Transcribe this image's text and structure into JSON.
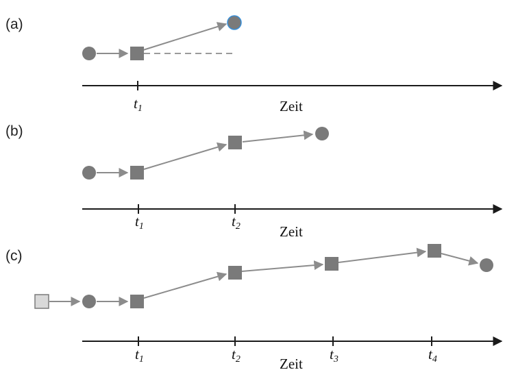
{
  "panels": [
    {
      "label": "(a)",
      "axis_label": "Zeit",
      "ticks": [
        {
          "base": "t",
          "sub": "1"
        }
      ]
    },
    {
      "label": "(b)",
      "axis_label": "Zeit",
      "ticks": [
        {
          "base": "t",
          "sub": "1"
        },
        {
          "base": "t",
          "sub": "2"
        }
      ]
    },
    {
      "label": "(c)",
      "axis_label": "Zeit",
      "ticks": [
        {
          "base": "t",
          "sub": "1"
        },
        {
          "base": "t",
          "sub": "2"
        },
        {
          "base": "t",
          "sub": "3"
        },
        {
          "base": "t",
          "sub": "4"
        }
      ]
    }
  ],
  "colors": {
    "node_fill": "#7a7a7a",
    "node_fill_light": "#d9d9d9",
    "node_stroke_highlight": "#3a8fd6",
    "edge": "#8c8c8c",
    "dashed": "#9a9a9a",
    "axis": "#1a1a1a"
  },
  "legend_shapes": [
    "circle",
    "square"
  ]
}
